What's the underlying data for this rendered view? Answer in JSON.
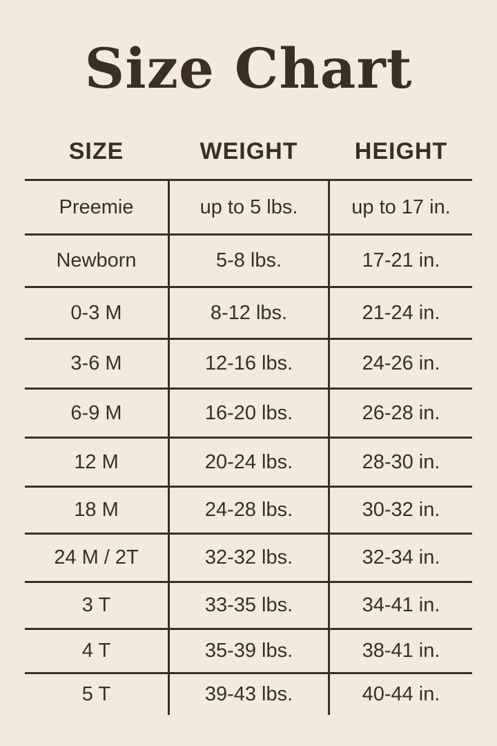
{
  "title": "Size Chart",
  "columns": [
    "SIZE",
    "WEIGHT",
    "HEIGHT"
  ],
  "rows": [
    {
      "size": "Preemie",
      "weight": "up to 5 lbs.",
      "height": "up to 17 in."
    },
    {
      "size": "Newborn",
      "weight": "5-8 lbs.",
      "height": "17-21 in."
    },
    {
      "size": "0-3 M",
      "weight": "8-12 lbs.",
      "height": "21-24 in."
    },
    {
      "size": "3-6 M",
      "weight": "12-16 lbs.",
      "height": "24-26 in."
    },
    {
      "size": "6-9 M",
      "weight": "16-20 lbs.",
      "height": "26-28 in."
    },
    {
      "size": "12 M",
      "weight": "20-24 lbs.",
      "height": "28-30 in."
    },
    {
      "size": "18 M",
      "weight": "24-28 lbs.",
      "height": "30-32 in."
    },
    {
      "size": "24 M / 2T",
      "weight": "32-32 lbs.",
      "height": "32-34 in."
    },
    {
      "size": "3 T",
      "weight": "33-35 lbs.",
      "height": "34-41 in."
    },
    {
      "size": "4 T",
      "weight": "35-39 lbs.",
      "height": "38-41 in."
    },
    {
      "size": "5 T",
      "weight": "39-43 lbs.",
      "height": "40-44 in."
    }
  ],
  "colors": {
    "background": "#f2eadf",
    "text": "#3a2e26"
  }
}
